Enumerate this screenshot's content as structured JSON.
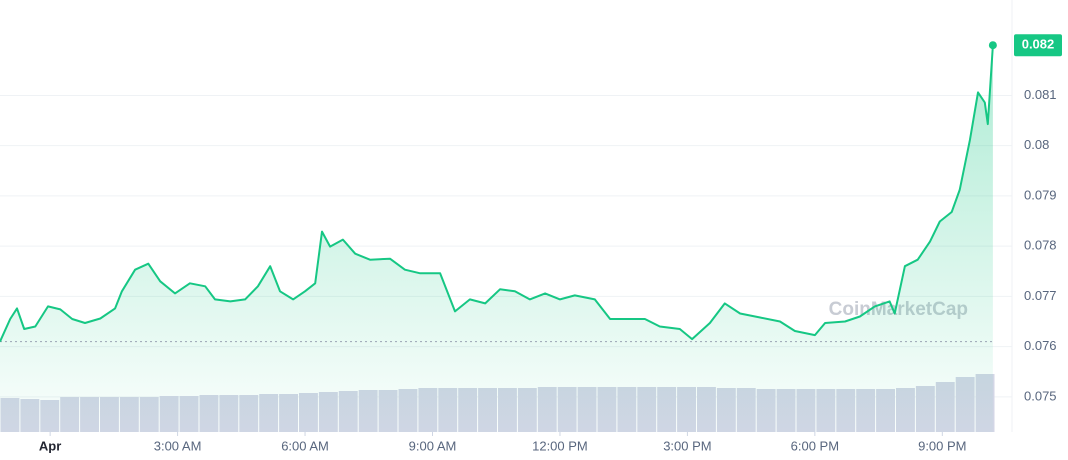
{
  "chart_data": {
    "type": "area",
    "color": "#16c784",
    "watermark": "CoinMarketCap",
    "x": [
      -1.18,
      -0.94,
      -0.78,
      -0.61,
      -0.35,
      -0.05,
      0.24,
      0.52,
      0.82,
      1.18,
      1.53,
      1.69,
      2.0,
      2.31,
      2.59,
      2.94,
      3.29,
      3.65,
      3.88,
      4.24,
      4.59,
      4.89,
      5.18,
      5.41,
      5.72,
      6.0,
      6.24,
      6.4,
      6.59,
      6.89,
      7.18,
      7.53,
      8.0,
      8.35,
      8.71,
      9.18,
      9.53,
      9.88,
      10.24,
      10.59,
      10.94,
      11.29,
      11.65,
      12.0,
      12.35,
      12.82,
      13.18,
      13.53,
      14.0,
      14.35,
      14.82,
      15.11,
      15.53,
      15.88,
      16.24,
      16.71,
      17.18,
      17.53,
      18.0,
      18.24,
      18.71,
      19.06,
      19.41,
      19.76,
      19.88,
      20.12,
      20.42,
      20.71,
      20.94,
      21.22,
      21.41,
      21.65,
      21.84,
      22.0,
      22.07,
      22.19
    ],
    "values": [
      0.0761,
      0.07655,
      0.07676,
      0.07635,
      0.0764,
      0.0768,
      0.07674,
      0.07655,
      0.07647,
      0.07656,
      0.07676,
      0.0771,
      0.07753,
      0.07765,
      0.0773,
      0.07706,
      0.07726,
      0.0772,
      0.07694,
      0.0769,
      0.07694,
      0.0772,
      0.0776,
      0.0771,
      0.07694,
      0.0771,
      0.07726,
      0.07829,
      0.07799,
      0.07813,
      0.07785,
      0.07773,
      0.07775,
      0.07753,
      0.07746,
      0.07746,
      0.0767,
      0.07694,
      0.07686,
      0.07714,
      0.0771,
      0.07694,
      0.07706,
      0.07694,
      0.07702,
      0.07694,
      0.07655,
      0.07655,
      0.07655,
      0.0764,
      0.07635,
      0.07615,
      0.07647,
      0.07686,
      0.07666,
      0.07658,
      0.0765,
      0.07631,
      0.07623,
      0.07647,
      0.0765,
      0.0766,
      0.0768,
      0.0769,
      0.07666,
      0.0776,
      0.07773,
      0.07809,
      0.07849,
      0.07868,
      0.07912,
      0.08011,
      0.08106,
      0.08086,
      0.08043,
      0.082
    ],
    "xlim": [
      -1.18,
      22.24
    ],
    "ylim": [
      0.0743,
      0.0829
    ],
    "yticks": [
      0.075,
      0.076,
      0.077,
      0.078,
      0.079,
      0.08,
      0.081
    ],
    "xticks": [
      {
        "value": 0,
        "label": "Apr"
      },
      {
        "value": 3,
        "label": "3:00 AM"
      },
      {
        "value": 6,
        "label": "6:00 AM"
      },
      {
        "value": 9,
        "label": "9:00 AM"
      },
      {
        "value": 12,
        "label": "12:00 PM"
      },
      {
        "value": 15,
        "label": "3:00 PM"
      },
      {
        "value": 18,
        "label": "6:00 PM"
      },
      {
        "value": 21,
        "label": "9:00 PM"
      }
    ],
    "grid": true,
    "volume": {
      "color": "#d3d6e6",
      "values": [
        34,
        33,
        32,
        35,
        35,
        35,
        35,
        35,
        36,
        36,
        37,
        37,
        37,
        38,
        38,
        39,
        40,
        41,
        42,
        42,
        43,
        44,
        44,
        44,
        44,
        44,
        44,
        45,
        45,
        45,
        45,
        45,
        45,
        45,
        45,
        45,
        44,
        44,
        43,
        43,
        43,
        43,
        43,
        43,
        43,
        44,
        46,
        50,
        55,
        58
      ]
    }
  }
}
